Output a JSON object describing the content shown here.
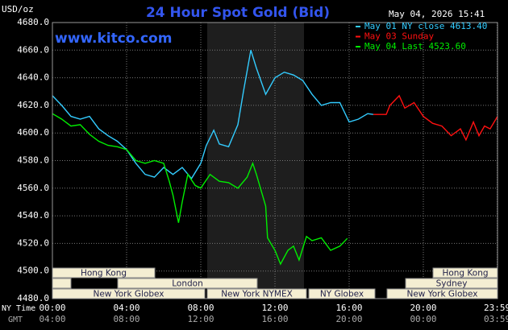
{
  "chart_data": {
    "type": "line",
    "title": "24 Hour Spot Gold (Bid)",
    "site": "www.kitco.com",
    "y_label": "USD/oz",
    "timestamp": "May 04, 2026 15:41",
    "x_row_labels": [
      "NY Time",
      "GMT"
    ],
    "xlim": [
      0,
      24
    ],
    "xticks": [
      {
        "value": 0,
        "label": "00:00"
      },
      {
        "value": 4,
        "label": "04:00"
      },
      {
        "value": 8,
        "label": "08:00"
      },
      {
        "value": 12,
        "label": "12:00"
      },
      {
        "value": 16,
        "label": "16:00"
      },
      {
        "value": 20,
        "label": "20:00"
      },
      {
        "value": 23.983,
        "label": "23:59"
      }
    ],
    "gmt_labels": [
      "04:00",
      "08:00",
      "12:00",
      "16:00",
      "20:00",
      "00:00",
      "03:59"
    ],
    "ylim": [
      4480,
      4680
    ],
    "yticks": [
      {
        "value": 4480,
        "label": "4480.0"
      },
      {
        "value": 4500,
        "label": "4500.0"
      },
      {
        "value": 4520,
        "label": "4520.0"
      },
      {
        "value": 4540,
        "label": "4540.0"
      },
      {
        "value": 4560,
        "label": "4560.0"
      },
      {
        "value": 4580,
        "label": "4580.0"
      },
      {
        "value": 4600,
        "label": "4600.0"
      },
      {
        "value": 4620,
        "label": "4620.0"
      },
      {
        "value": 4640,
        "label": "4640.0"
      },
      {
        "value": 4660,
        "label": "4660.0"
      },
      {
        "value": 4680,
        "label": "4680.0"
      }
    ],
    "grid": true,
    "sessions": [
      {
        "name": "Hong Kong"
      },
      {
        "name": "London"
      },
      {
        "name": "New York Globex"
      },
      {
        "name": "New York NYMEX"
      },
      {
        "name": "NY Globex"
      },
      {
        "name": "New York Globex"
      },
      {
        "name": "Sydney"
      },
      {
        "name": "Hong Kong"
      }
    ],
    "series": [
      {
        "name": "May 01 NY close 4613.40",
        "color": "#33ccff",
        "x": [
          0,
          0.5,
          1,
          1.5,
          2,
          2.5,
          3,
          3.5,
          4,
          4.5,
          5,
          5.5,
          6,
          6.5,
          7,
          7.5,
          8,
          8.3,
          8.7,
          9,
          9.5,
          10,
          10.3,
          10.7,
          11,
          11.5,
          12,
          12.5,
          13,
          13.5,
          14,
          14.5,
          15,
          15.5,
          16,
          16.5,
          17,
          17.3
        ],
        "values": [
          4627,
          4620,
          4612,
          4610,
          4612,
          4603,
          4598,
          4594,
          4588,
          4578,
          4570,
          4568,
          4575,
          4570,
          4575,
          4567,
          4578,
          4591,
          4602,
          4592,
          4590,
          4606,
          4630,
          4660,
          4647,
          4628,
          4640,
          4644,
          4642,
          4638,
          4628,
          4620,
          4622,
          4622,
          4608,
          4610,
          4614,
          4613.4
        ]
      },
      {
        "name": "May 03 Sunday",
        "color": "#ff1111",
        "x": [
          17.3,
          18,
          18.2,
          18.7,
          19,
          19.5,
          20,
          20.5,
          21,
          21.5,
          22,
          22.3,
          22.7,
          23,
          23.3,
          23.6,
          24
        ],
        "values": [
          4613.4,
          4613.4,
          4620,
          4627,
          4618,
          4622,
          4612,
          4607,
          4605,
          4598,
          4603,
          4595,
          4608,
          4598,
          4605,
          4603,
          4612
        ]
      },
      {
        "name": "May 04 Last 4523.60",
        "color": "#00ee00",
        "x": [
          0,
          0.5,
          1,
          1.5,
          2,
          2.5,
          3,
          3.5,
          4,
          4.5,
          5,
          5.5,
          6,
          6.3,
          6.5,
          6.8,
          7,
          7.3,
          7.7,
          8,
          8.5,
          9,
          9.5,
          10,
          10.5,
          10.8,
          11,
          11.5,
          11.6,
          12,
          12.3,
          12.7,
          13,
          13.3,
          13.7,
          14,
          14.5,
          15,
          15.5,
          15.9
        ],
        "values": [
          4614,
          4610,
          4605,
          4606,
          4599,
          4594,
          4591,
          4590,
          4588,
          4580,
          4578,
          4580,
          4578,
          4565,
          4555,
          4535,
          4550,
          4570,
          4562,
          4560,
          4570,
          4565,
          4564,
          4560,
          4568,
          4578,
          4570,
          4547,
          4524,
          4515,
          4505,
          4515,
          4518,
          4508,
          4525,
          4522,
          4524,
          4515,
          4518,
          4523.6
        ]
      }
    ]
  }
}
